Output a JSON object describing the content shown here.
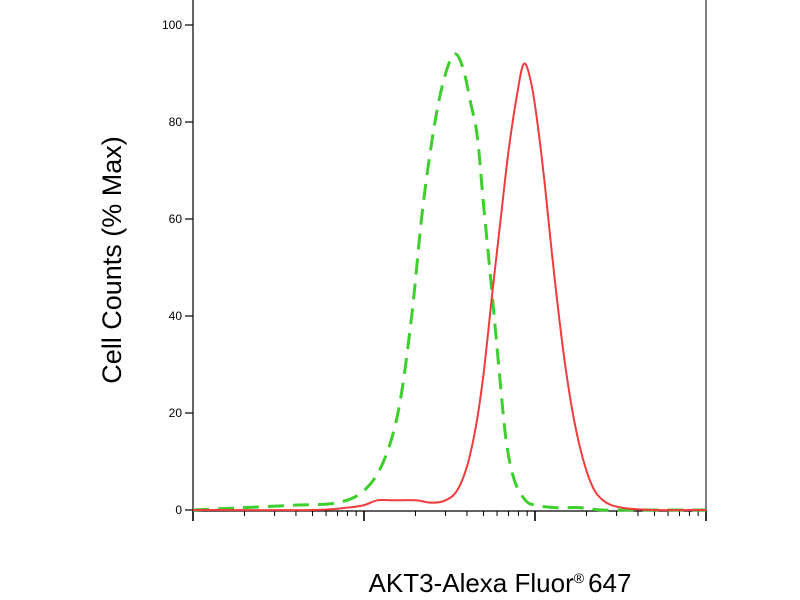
{
  "chart_data": {
    "type": "line",
    "title": "",
    "xlabel": "AKT3-Alexa Fluor",
    "xlabel_mark": "®",
    "xlabel_suffix": "647",
    "ylabel": "Cell Counts (% Max)",
    "ylim": [
      0,
      100
    ],
    "yticks": [
      "0",
      "20",
      "40",
      "60",
      "80",
      "100"
    ],
    "xscale": "log",
    "xlim": [
      10000,
      10000000
    ],
    "x_ticklabels_shown": false,
    "grid": false,
    "legend": "none",
    "series": [
      {
        "color": "#3ecf2e",
        "style": "dashed",
        "x": [
          10000,
          20000,
          40000,
          70000,
          100000,
          130000,
          160000,
          190000,
          220000,
          260000,
          300000,
          340000,
          380000,
          420000,
          460000,
          500000,
          560000,
          620000,
          680000,
          760000,
          880000,
          1000000,
          1300000,
          1800000,
          2500000,
          4000000,
          10000000
        ],
        "y": [
          0,
          0.5,
          1,
          1.5,
          4,
          10,
          21,
          40,
          62,
          80,
          90,
          94,
          91,
          84,
          77,
          63,
          45,
          28,
          14,
          6,
          2,
          1,
          0.5,
          0.5,
          0,
          0,
          0
        ]
      },
      {
        "color": "#f03c3c",
        "style": "solid",
        "x": [
          10000,
          50000,
          80000,
          100000,
          120000,
          150000,
          200000,
          250000,
          300000,
          350000,
          400000,
          450000,
          500000,
          560000,
          630000,
          700000,
          780000,
          860000,
          950000,
          1050000,
          1150000,
          1300000,
          1500000,
          1750000,
          2100000,
          2500000,
          3200000,
          5000000,
          10000000
        ],
        "y": [
          0,
          0,
          0.5,
          1,
          2,
          2,
          2,
          1.5,
          2,
          4,
          9,
          17,
          28,
          44,
          60,
          74,
          85,
          92,
          88,
          78,
          66,
          48,
          30,
          16,
          6,
          2,
          0.5,
          0,
          0
        ]
      }
    ]
  }
}
